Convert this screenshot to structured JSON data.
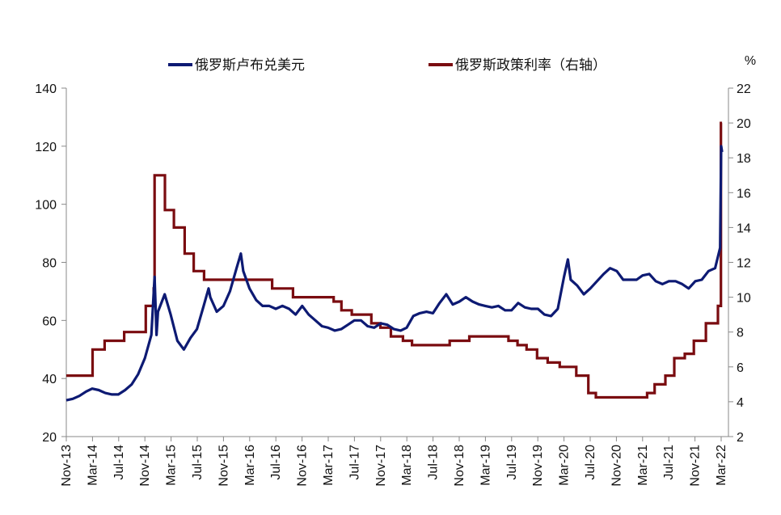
{
  "chart_data": {
    "type": "line",
    "title": "",
    "legend": {
      "placement": "top",
      "entries": [
        {
          "label": "俄罗斯卢布兑美元",
          "color": "#0d1a73"
        },
        {
          "label": "俄罗斯政策利率（右轴）",
          "color": "#7a0c10"
        }
      ]
    },
    "x_tick_labels": [
      "Nov-13",
      "Mar-14",
      "Jul-14",
      "Nov-14",
      "Mar-15",
      "Jul-15",
      "Nov-15",
      "Mar-16",
      "Jul-16",
      "Nov-16",
      "Mar-17",
      "Jul-17",
      "Nov-17",
      "Mar-18",
      "Jul-18",
      "Nov-18",
      "Mar-19",
      "Jul-19",
      "Nov-19",
      "Mar-20",
      "Jul-20",
      "Nov-20",
      "Mar-21",
      "Jul-21",
      "Nov-21",
      "Mar-22"
    ],
    "y_left": {
      "range": [
        20,
        140
      ],
      "ticks": [
        20,
        40,
        60,
        80,
        100,
        120,
        140
      ]
    },
    "y_right": {
      "label": "%",
      "range": [
        2,
        22
      ],
      "ticks": [
        2,
        4,
        6,
        8,
        10,
        12,
        14,
        16,
        18,
        20,
        22
      ]
    },
    "series": [
      {
        "name": "俄罗斯卢布兑美元",
        "axis": "left",
        "color": "#0d1a73",
        "points": [
          [
            "2013-11",
            32.5
          ],
          [
            "2013-12",
            33.0
          ],
          [
            "2014-01",
            34.0
          ],
          [
            "2014-02",
            35.5
          ],
          [
            "2014-03",
            36.5
          ],
          [
            "2014-04",
            36.0
          ],
          [
            "2014-05",
            35.0
          ],
          [
            "2014-06",
            34.5
          ],
          [
            "2014-07",
            34.5
          ],
          [
            "2014-08",
            36.0
          ],
          [
            "2014-09",
            38.0
          ],
          [
            "2014-10",
            41.5
          ],
          [
            "2014-11",
            47.0
          ],
          [
            "2014-12",
            55.0
          ],
          [
            "2014-12-16",
            75.0
          ],
          [
            "2014-12-25",
            55.0
          ],
          [
            "2015-01",
            63.0
          ],
          [
            "2015-02",
            69.0
          ],
          [
            "2015-03",
            62.0
          ],
          [
            "2015-04",
            53.0
          ],
          [
            "2015-05",
            50.0
          ],
          [
            "2015-06",
            54.0
          ],
          [
            "2015-07",
            57.0
          ],
          [
            "2015-08",
            65.0
          ],
          [
            "2015-08-24",
            71.0
          ],
          [
            "2015-09",
            68.0
          ],
          [
            "2015-10",
            63.0
          ],
          [
            "2015-11",
            65.0
          ],
          [
            "2015-12",
            70.0
          ],
          [
            "2016-01",
            78.0
          ],
          [
            "2016-01-21",
            83.0
          ],
          [
            "2016-02",
            77.0
          ],
          [
            "2016-03",
            71.0
          ],
          [
            "2016-04",
            67.0
          ],
          [
            "2016-05",
            65.0
          ],
          [
            "2016-06",
            65.0
          ],
          [
            "2016-07",
            64.0
          ],
          [
            "2016-08",
            65.0
          ],
          [
            "2016-09",
            64.0
          ],
          [
            "2016-10",
            62.0
          ],
          [
            "2016-11",
            65.0
          ],
          [
            "2016-12",
            62.0
          ],
          [
            "2017-01",
            60.0
          ],
          [
            "2017-02",
            58.0
          ],
          [
            "2017-03",
            57.5
          ],
          [
            "2017-04",
            56.5
          ],
          [
            "2017-05",
            57.0
          ],
          [
            "2017-06",
            58.5
          ],
          [
            "2017-07",
            60.0
          ],
          [
            "2017-08",
            60.0
          ],
          [
            "2017-09",
            58.0
          ],
          [
            "2017-10",
            57.5
          ],
          [
            "2017-11",
            59.0
          ],
          [
            "2017-12",
            58.5
          ],
          [
            "2018-01",
            57.0
          ],
          [
            "2018-02",
            56.5
          ],
          [
            "2018-03",
            57.5
          ],
          [
            "2018-04",
            61.5
          ],
          [
            "2018-05",
            62.5
          ],
          [
            "2018-06",
            63.0
          ],
          [
            "2018-07",
            62.5
          ],
          [
            "2018-08",
            66.0
          ],
          [
            "2018-09",
            69.0
          ],
          [
            "2018-10",
            65.5
          ],
          [
            "2018-11",
            66.5
          ],
          [
            "2018-12",
            68.0
          ],
          [
            "2019-01",
            66.5
          ],
          [
            "2019-02",
            65.5
          ],
          [
            "2019-03",
            65.0
          ],
          [
            "2019-04",
            64.5
          ],
          [
            "2019-05",
            65.0
          ],
          [
            "2019-06",
            63.5
          ],
          [
            "2019-07",
            63.5
          ],
          [
            "2019-08",
            66.0
          ],
          [
            "2019-09",
            64.5
          ],
          [
            "2019-10",
            64.0
          ],
          [
            "2019-11",
            64.0
          ],
          [
            "2019-12",
            62.0
          ],
          [
            "2020-01",
            61.5
          ],
          [
            "2020-02",
            64.0
          ],
          [
            "2020-03",
            75.0
          ],
          [
            "2020-03-19",
            81.0
          ],
          [
            "2020-04",
            74.0
          ],
          [
            "2020-05",
            72.0
          ],
          [
            "2020-06",
            69.0
          ],
          [
            "2020-07",
            71.0
          ],
          [
            "2020-08",
            73.5
          ],
          [
            "2020-09",
            76.0
          ],
          [
            "2020-10",
            78.0
          ],
          [
            "2020-11",
            77.0
          ],
          [
            "2020-12",
            74.0
          ],
          [
            "2021-01",
            74.0
          ],
          [
            "2021-02",
            74.0
          ],
          [
            "2021-03",
            75.5
          ],
          [
            "2021-04",
            76.0
          ],
          [
            "2021-05",
            73.5
          ],
          [
            "2021-06",
            72.5
          ],
          [
            "2021-07",
            73.5
          ],
          [
            "2021-08",
            73.5
          ],
          [
            "2021-09",
            72.5
          ],
          [
            "2021-10",
            71.0
          ],
          [
            "2021-11",
            73.5
          ],
          [
            "2021-12",
            74.0
          ],
          [
            "2022-01",
            77.0
          ],
          [
            "2022-02",
            78.0
          ],
          [
            "2022-02-24",
            85.0
          ],
          [
            "2022-03-01",
            120.0
          ],
          [
            "2022-03-05",
            118.0
          ]
        ]
      },
      {
        "name": "俄罗斯政策利率（右轴）",
        "axis": "right",
        "color": "#7a0c10",
        "steps": [
          [
            "2013-11",
            5.5
          ],
          [
            "2014-03-03",
            7.0
          ],
          [
            "2014-04-28",
            7.5
          ],
          [
            "2014-07-28",
            8.0
          ],
          [
            "2014-11-05",
            9.5
          ],
          [
            "2014-12-12",
            10.5
          ],
          [
            "2014-12-16",
            17.0
          ],
          [
            "2015-02-02",
            15.0
          ],
          [
            "2015-03-16",
            14.0
          ],
          [
            "2015-05-05",
            12.5
          ],
          [
            "2015-06-16",
            11.5
          ],
          [
            "2015-08-03",
            11.0
          ],
          [
            "2016-06-14",
            10.5
          ],
          [
            "2016-09-19",
            10.0
          ],
          [
            "2017-03-27",
            9.75
          ],
          [
            "2017-05-02",
            9.25
          ],
          [
            "2017-06-19",
            9.0
          ],
          [
            "2017-09-18",
            8.5
          ],
          [
            "2017-10-30",
            8.25
          ],
          [
            "2017-12-18",
            7.75
          ],
          [
            "2018-02-12",
            7.5
          ],
          [
            "2018-03-26",
            7.25
          ],
          [
            "2018-09-17",
            7.5
          ],
          [
            "2018-12-17",
            7.75
          ],
          [
            "2019-06-17",
            7.5
          ],
          [
            "2019-07-29",
            7.25
          ],
          [
            "2019-09-09",
            7.0
          ],
          [
            "2019-10-28",
            6.5
          ],
          [
            "2019-12-16",
            6.25
          ],
          [
            "2020-02-10",
            6.0
          ],
          [
            "2020-04-27",
            5.5
          ],
          [
            "2020-06-22",
            4.5
          ],
          [
            "2020-07-27",
            4.25
          ],
          [
            "2021-03-22",
            4.5
          ],
          [
            "2021-04-26",
            5.0
          ],
          [
            "2021-06-15",
            5.5
          ],
          [
            "2021-07-26",
            6.5
          ],
          [
            "2021-09-13",
            6.75
          ],
          [
            "2021-10-25",
            7.5
          ],
          [
            "2021-12-20",
            8.5
          ],
          [
            "2022-02-14",
            9.5
          ],
          [
            "2022-02-28",
            20.0
          ],
          [
            "2022-03-05",
            20.0
          ]
        ]
      }
    ]
  }
}
